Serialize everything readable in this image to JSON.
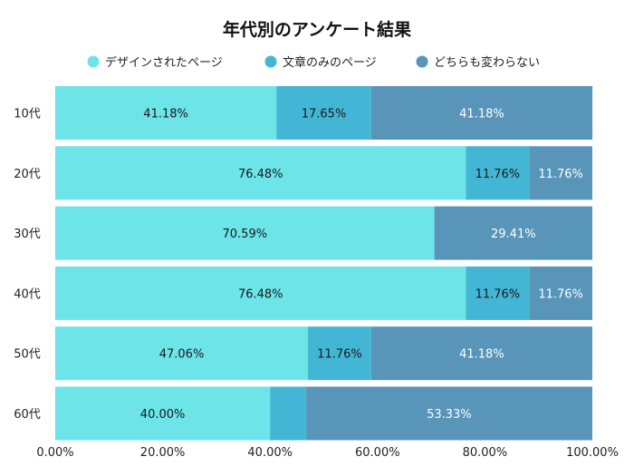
{
  "chart_data": {
    "type": "bar",
    "orientation": "horizontal",
    "stacked": "percent",
    "title": "年代別のアンケート結果",
    "categories": [
      "10代",
      "20代",
      "30代",
      "40代",
      "50代",
      "60代"
    ],
    "series": [
      {
        "name": "デザインされたページ",
        "color": "#6ce4e8",
        "label_color": "#1a1a1a",
        "values": [
          41.18,
          76.48,
          70.59,
          76.48,
          47.06,
          40.0
        ],
        "labels": [
          "41.18%",
          "76.48%",
          "70.59%",
          "76.48%",
          "47.06%",
          "40.00%"
        ]
      },
      {
        "name": "文章のみのページ",
        "color": "#42b6d4",
        "label_color": "#1a1a1a",
        "values": [
          17.65,
          11.76,
          0,
          11.76,
          11.76,
          6.67
        ],
        "labels": [
          "17.65%",
          "11.76%",
          "",
          "11.76%",
          "11.76%",
          ""
        ]
      },
      {
        "name": "どちらも変わらない",
        "color": "#5895b9",
        "label_color": "#ffffff",
        "values": [
          41.18,
          11.76,
          29.41,
          11.76,
          41.18,
          53.33
        ],
        "labels": [
          "41.18%",
          "11.76%",
          "29.41%",
          "11.76%",
          "41.18%",
          "53.33%"
        ]
      }
    ],
    "xlim": [
      0,
      100
    ],
    "xticks": [
      "0.00%",
      "20.00%",
      "40.00%",
      "60.00%",
      "80.00%",
      "100.00%"
    ],
    "grid": false,
    "legend_position": "top"
  }
}
